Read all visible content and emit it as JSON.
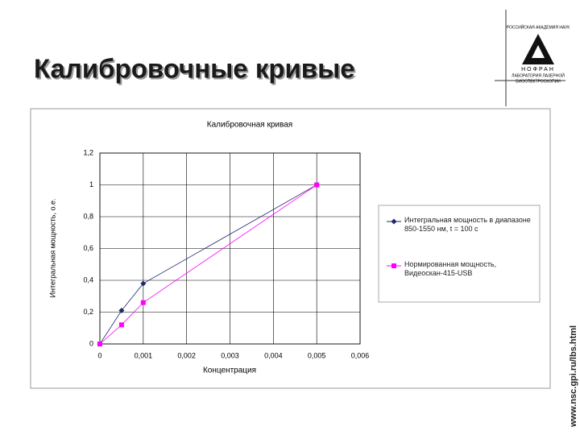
{
  "slide": {
    "title": "Калибровочные кривые",
    "logo_top": "РОССИЙСКАЯ АКАДЕМИЯ НАУК",
    "logo_name": "НОФРАН",
    "logo_bottom": [
      "ЛАБОРАТОРИЯ ЛАЗЕРНОЙ",
      "БИОСПЕКТРОСКОПИИ"
    ],
    "url": "www.nsc.gpi.ru/lbs.html"
  },
  "chart_data": {
    "type": "line",
    "title": "Калибровочная кривая",
    "x_label": "Концентрация",
    "y_label": "Интегральная мощность, о.е.",
    "x": [
      0,
      0.0005,
      0.001,
      0.005
    ],
    "series": [
      {
        "name": "Интегральная мощность в диапазоне 850-1550 нм, t = 100 с",
        "color": "#1f2a6b",
        "marker": "diamond",
        "values": [
          0,
          0.21,
          0.38,
          1.0
        ]
      },
      {
        "name": "Нормированная мощность, Видеоскан-415-USB",
        "color": "#ff00ff",
        "marker": "square",
        "values": [
          0,
          0.12,
          0.26,
          1.0
        ]
      }
    ],
    "xlim": [
      0,
      0.006
    ],
    "ylim": [
      0,
      1.2
    ],
    "xticks": [
      0,
      {
        "value": 0.001,
        "label": "0,001"
      },
      {
        "value": 0.002,
        "label": "0,002"
      },
      {
        "value": 0.003,
        "label": "0,003"
      },
      {
        "value": 0.004,
        "label": "0,004"
      },
      {
        "value": 0.005,
        "label": "0,005"
      },
      {
        "value": 0.006,
        "label": "0,006"
      }
    ],
    "yticks": [
      0,
      {
        "value": 0.2,
        "label": "0,2"
      },
      {
        "value": 0.4,
        "label": "0,4"
      },
      {
        "value": 0.6,
        "label": "0,6"
      },
      {
        "value": 0.8,
        "label": "0,8"
      },
      1,
      {
        "value": 1.2,
        "label": "1,2"
      }
    ],
    "grid": true,
    "legend": "right"
  }
}
